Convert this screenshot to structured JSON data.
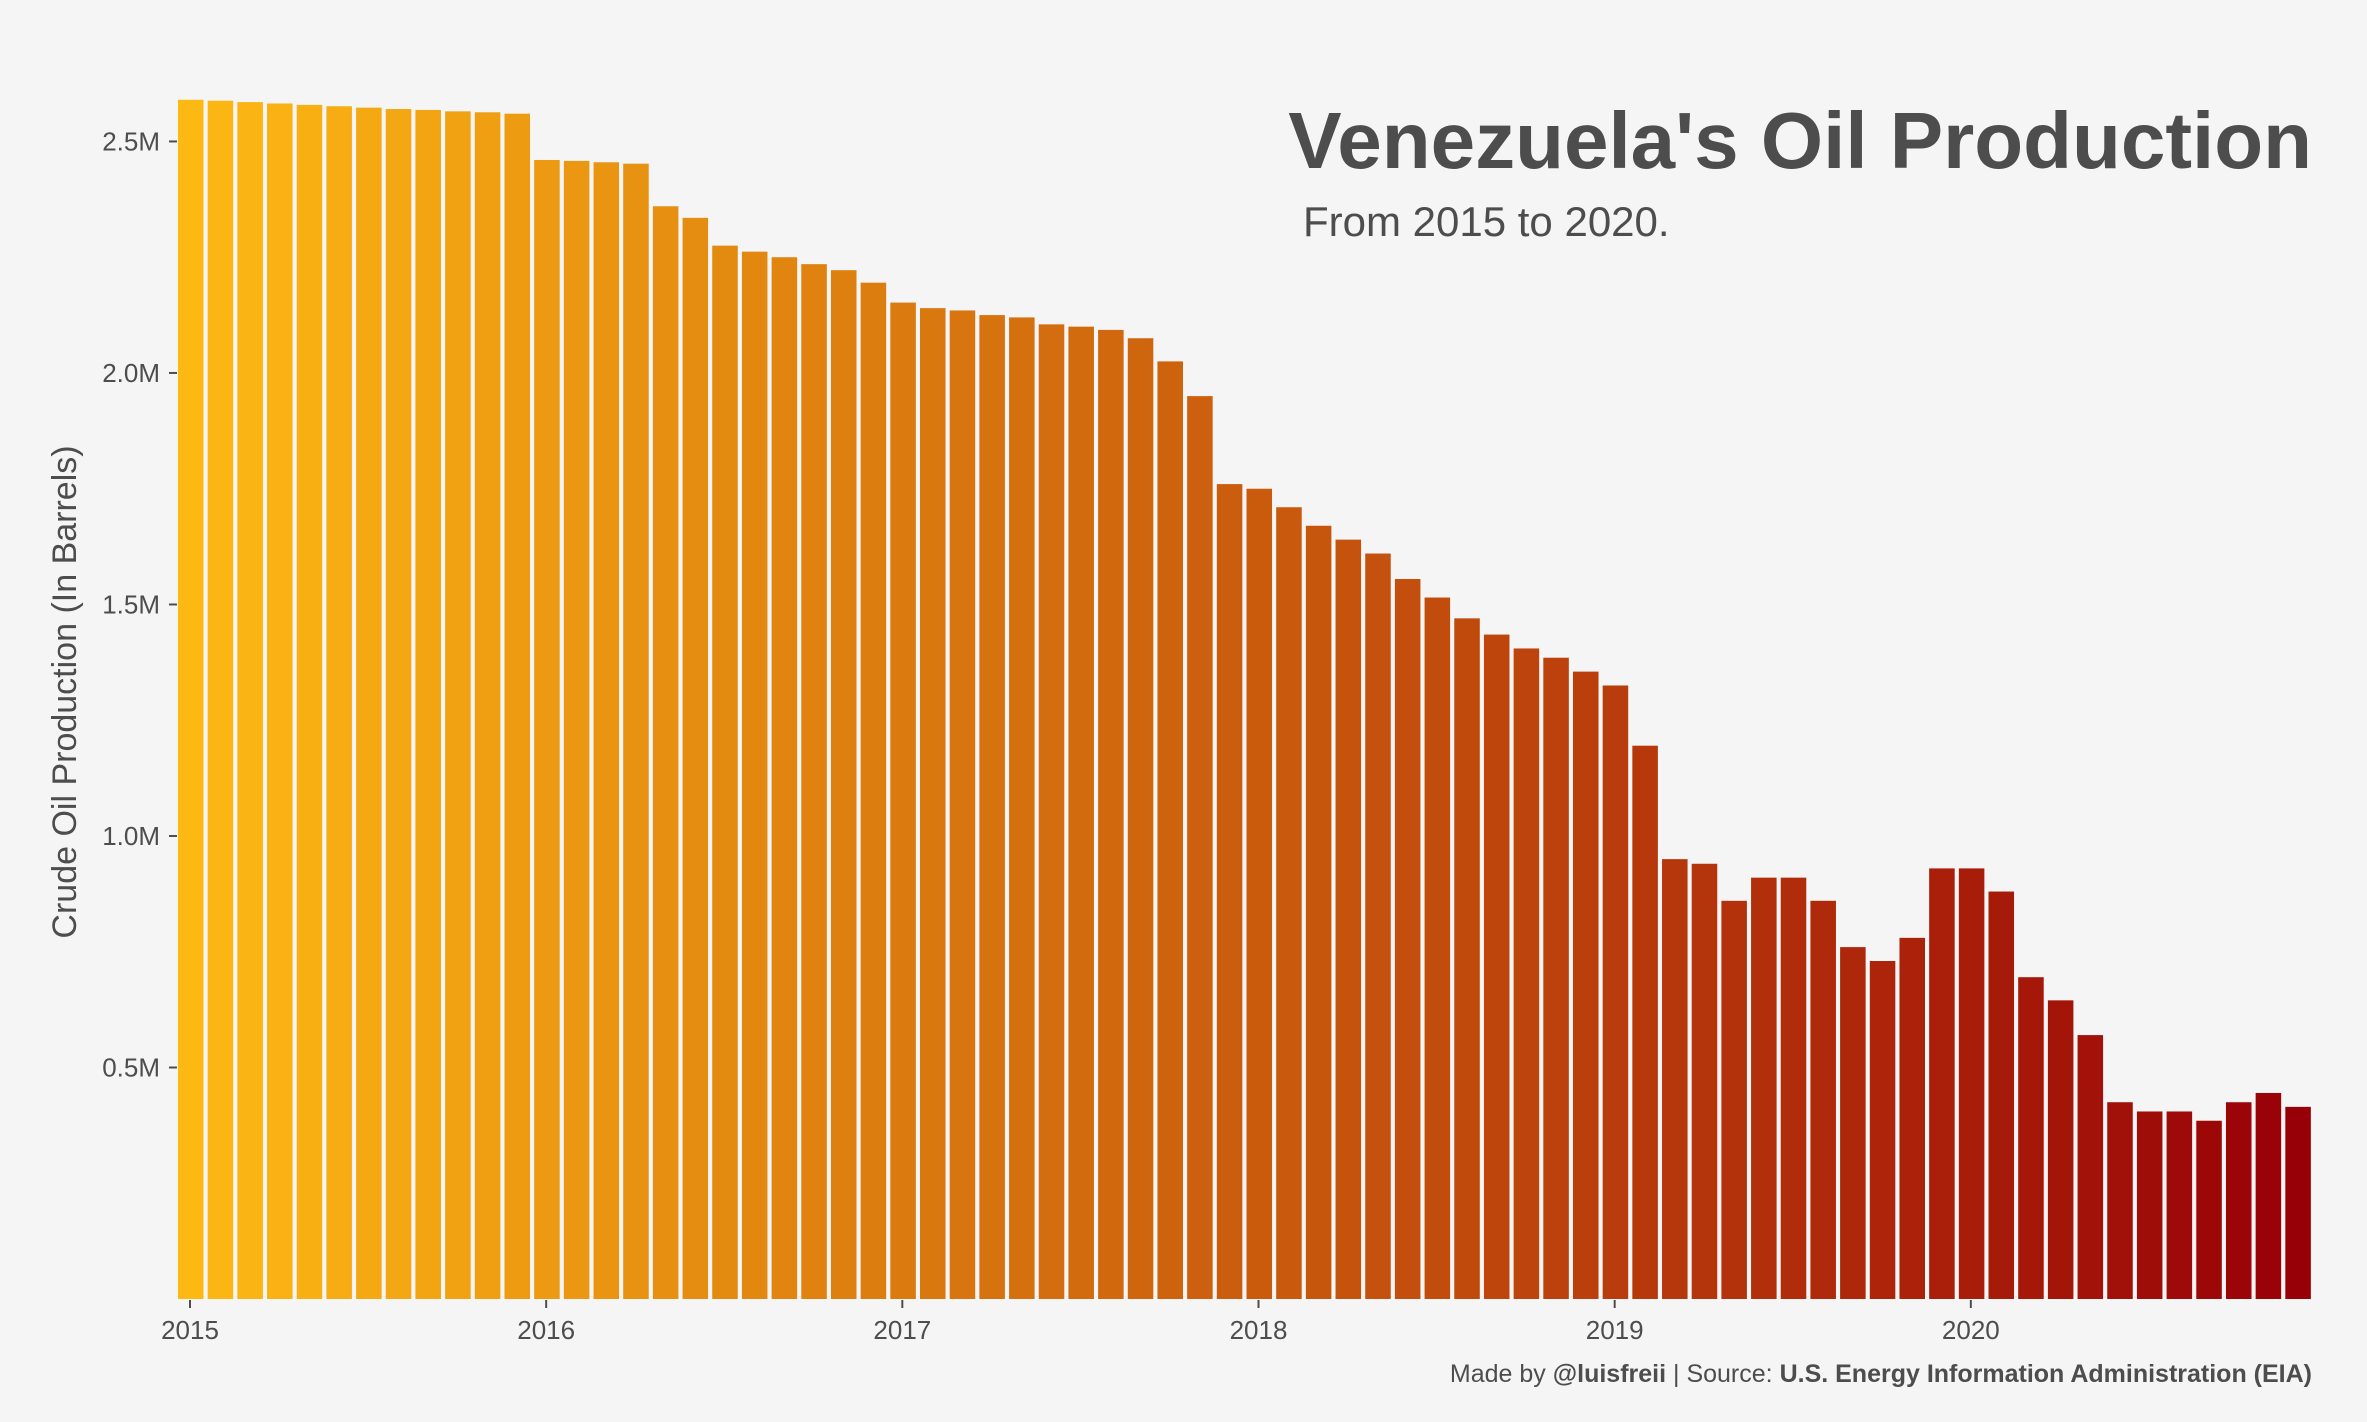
{
  "chart_data": {
    "type": "bar",
    "title": "Venezuela's Oil Production",
    "subtitle": "From 2015 to 2020.",
    "xlabel": "",
    "ylabel": "Crude Oil Production (In Barrels)",
    "ylim": [
      0,
      2650000
    ],
    "y_ticks": [
      {
        "value": 500000,
        "label": "0.5M"
      },
      {
        "value": 1000000,
        "label": "1.0M"
      },
      {
        "value": 1500000,
        "label": "1.5M"
      },
      {
        "value": 2000000,
        "label": "2.0M"
      },
      {
        "value": 2500000,
        "label": "2.5M"
      }
    ],
    "x_ticks": [
      {
        "index": 0,
        "label": "2015"
      },
      {
        "index": 12,
        "label": "2016"
      },
      {
        "index": 24,
        "label": "2017"
      },
      {
        "index": 36,
        "label": "2018"
      },
      {
        "index": 48,
        "label": "2019"
      },
      {
        "index": 60,
        "label": "2020"
      }
    ],
    "grid": false,
    "legend": "none",
    "color_gradient": [
      "#fdb913",
      "#980008"
    ],
    "categories": [
      "2015-01",
      "2015-02",
      "2015-03",
      "2015-04",
      "2015-05",
      "2015-06",
      "2015-07",
      "2015-08",
      "2015-09",
      "2015-10",
      "2015-11",
      "2015-12",
      "2016-01",
      "2016-02",
      "2016-03",
      "2016-04",
      "2016-05",
      "2016-06",
      "2016-07",
      "2016-08",
      "2016-09",
      "2016-10",
      "2016-11",
      "2016-12",
      "2017-01",
      "2017-02",
      "2017-03",
      "2017-04",
      "2017-05",
      "2017-06",
      "2017-07",
      "2017-08",
      "2017-09",
      "2017-10",
      "2017-11",
      "2017-12",
      "2018-01",
      "2018-02",
      "2018-03",
      "2018-04",
      "2018-05",
      "2018-06",
      "2018-07",
      "2018-08",
      "2018-09",
      "2018-10",
      "2018-11",
      "2018-12",
      "2019-01",
      "2019-02",
      "2019-03",
      "2019-04",
      "2019-05",
      "2019-06",
      "2019-07",
      "2019-08",
      "2019-09",
      "2019-10",
      "2019-11",
      "2019-12",
      "2020-01",
      "2020-02",
      "2020-03",
      "2020-04",
      "2020-05",
      "2020-06",
      "2020-07",
      "2020-08",
      "2020-09",
      "2020-10",
      "2020-11",
      "2020-12"
    ],
    "values": [
      2590000,
      2588000,
      2585000,
      2582000,
      2579000,
      2576000,
      2573000,
      2570000,
      2568000,
      2565000,
      2563000,
      2560000,
      2460000,
      2458000,
      2455000,
      2452000,
      2360000,
      2335000,
      2275000,
      2262000,
      2250000,
      2235000,
      2222000,
      2195000,
      2152000,
      2140000,
      2135000,
      2125000,
      2120000,
      2105000,
      2100000,
      2093000,
      2075000,
      2025000,
      1950000,
      1760000,
      1750000,
      1710000,
      1670000,
      1640000,
      1610000,
      1555000,
      1515000,
      1470000,
      1435000,
      1405000,
      1385000,
      1355000,
      1325000,
      1195000,
      950000,
      940000,
      860000,
      910000,
      910000,
      860000,
      760000,
      730000,
      780000,
      930000,
      930000,
      880000,
      695000,
      645000,
      570000,
      425000,
      405000,
      405000,
      385000,
      425000,
      445000,
      415000
    ]
  },
  "credit": {
    "made_by_prefix": "Made by ",
    "made_by_handle": "@luisfreii",
    "source_prefix": " | Source: ",
    "source_name": "U.S. Energy Information Administration (EIA)"
  }
}
